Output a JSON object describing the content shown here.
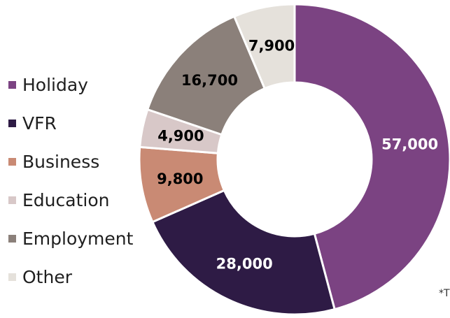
{
  "chart_data": {
    "type": "pie",
    "title": "",
    "categories": [
      "Holiday",
      "VFR",
      "Business",
      "Education",
      "Employment",
      "Other"
    ],
    "values": [
      57000,
      28000,
      9800,
      4900,
      16700,
      7900
    ],
    "data_labels": [
      "57,000",
      "28,000",
      "9,800",
      "4,900",
      "16,700",
      "7,900"
    ],
    "colors": [
      "#7b4382",
      "#2e1b45",
      "#c98a74",
      "#d8c8c8",
      "#8b807a",
      "#e5e1db"
    ],
    "label_colors": [
      "#ffffff",
      "#ffffff",
      "#000000",
      "#000000",
      "#000000",
      "#000000"
    ],
    "legend_position": "left",
    "donut": true
  },
  "footnote": "*T"
}
